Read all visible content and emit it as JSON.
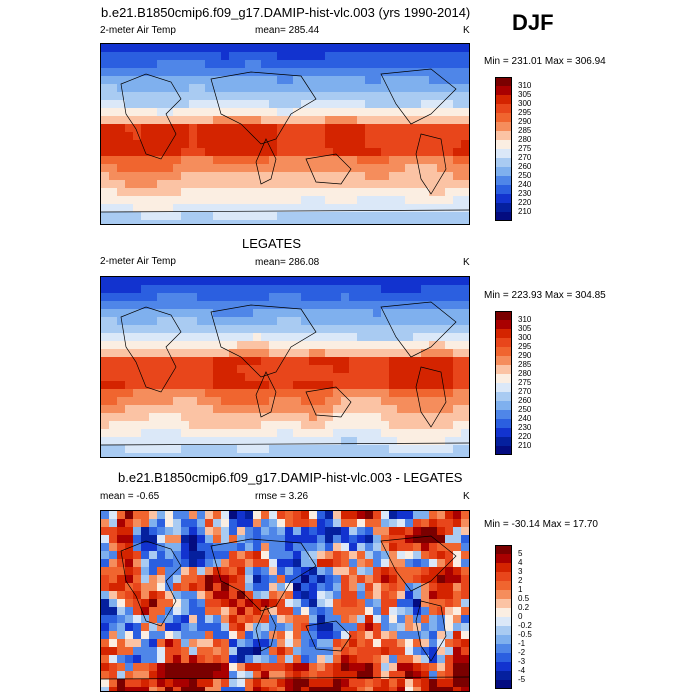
{
  "season": "DJF",
  "chart_data": [
    {
      "type": "heatmap",
      "title": "b.e21.B1850cmip6.f09_g17.DAMIP-hist-vlc.003 (yrs 1990-2014)",
      "left_label": "2-meter Air Temp",
      "center_label": "mean= 285.44",
      "unit": "K",
      "minmax": "Min = 231.01 Max = 306.94",
      "colorbar": {
        "levels": [
          "310",
          "305",
          "300",
          "295",
          "290",
          "285",
          "280",
          "275",
          "270",
          "260",
          "250",
          "240",
          "230",
          "220",
          "210"
        ],
        "colors": [
          "#7a0000",
          "#a90000",
          "#d42400",
          "#e8461b",
          "#f0652f",
          "#f58d5c",
          "#fbc3a4",
          "#fbeee2",
          "#dbe8f8",
          "#a9cbf2",
          "#7fb0ee",
          "#4f86e8",
          "#2b5fe0",
          "#1233cf",
          "#05209e",
          "#040c80"
        ]
      }
    },
    {
      "type": "heatmap",
      "title": "LEGATES",
      "left_label": "2-meter Air Temp",
      "center_label": "mean= 286.08",
      "unit": "K",
      "minmax": "Min = 223.93 Max = 304.85",
      "colorbar": {
        "levels": [
          "310",
          "305",
          "300",
          "295",
          "290",
          "285",
          "280",
          "275",
          "270",
          "260",
          "250",
          "240",
          "230",
          "220",
          "210"
        ],
        "colors": [
          "#7a0000",
          "#a90000",
          "#d42400",
          "#e8461b",
          "#f0652f",
          "#f58d5c",
          "#fbc3a4",
          "#fbeee2",
          "#dbe8f8",
          "#a9cbf2",
          "#7fb0ee",
          "#4f86e8",
          "#2b5fe0",
          "#1233cf",
          "#05209e",
          "#040c80"
        ]
      }
    },
    {
      "type": "heatmap",
      "title": "b.e21.B1850cmip6.f09_g17.DAMIP-hist-vlc.003 - LEGATES",
      "left_label": "mean =  -0.65",
      "center_label": "rmse =   3.26",
      "unit": "K",
      "minmax": "Min = -30.14 Max =  17.70",
      "colorbar": {
        "levels": [
          "5",
          "4",
          "3",
          "2",
          "1",
          "0.5",
          "0.2",
          "0",
          "-0.2",
          "-0.5",
          "-1",
          "-2",
          "-3",
          "-4",
          "-5"
        ],
        "colors": [
          "#7a0000",
          "#a90000",
          "#d42400",
          "#e8461b",
          "#f0652f",
          "#f58d5c",
          "#fbc3a4",
          "#fbeee2",
          "#dbe8f8",
          "#a9cbf2",
          "#7fb0ee",
          "#4f86e8",
          "#2b5fe0",
          "#1233cf",
          "#05209e",
          "#040c80"
        ]
      }
    }
  ]
}
